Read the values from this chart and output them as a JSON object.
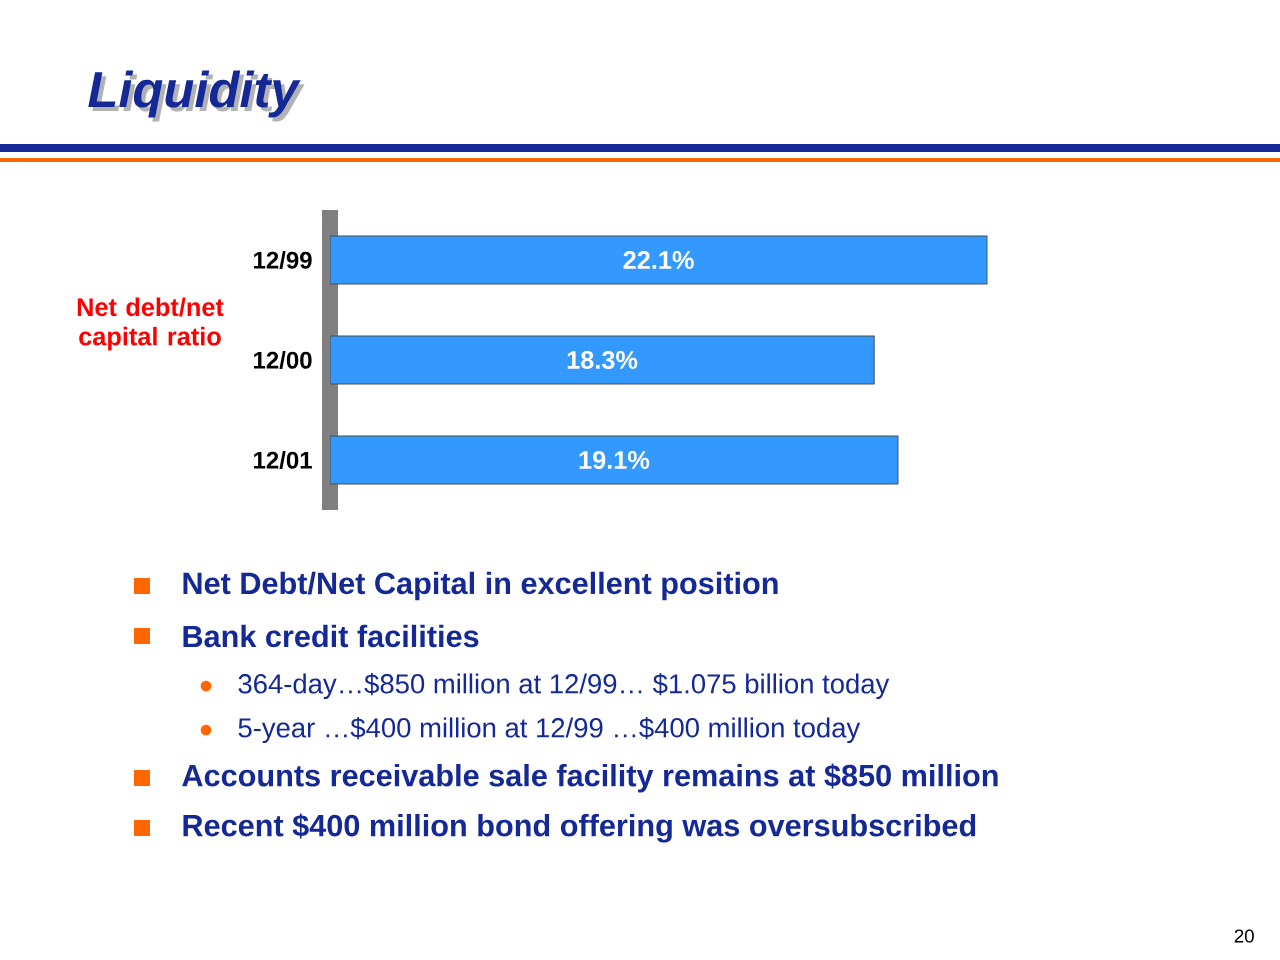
{
  "chart_data": {
    "type": "bar",
    "orientation": "horizontal",
    "title": "Liquidity",
    "ylabel": "Net debt/net capital ratio",
    "categories": [
      "12/99",
      "12/00",
      "12/01"
    ],
    "values": [
      22.1,
      18.3,
      19.1
    ],
    "color": "#3399ff",
    "value_labels": [
      "22.1%",
      "18.3%",
      "19.1%"
    ],
    "tick_labels": "y",
    "annotations": [
      "Net Debt/Net Capital in excellent position",
      "Bank credit facilities",
      "364-day…$850 million at 12/99… $1.075 billion today",
      "5-year …$400 million at 12/99 …$400 million today",
      "Accounts receivable sale facility remains at $850 million",
      "Recent $400 million bond offering was oversubscribed",
      "20"
    ]
  }
}
